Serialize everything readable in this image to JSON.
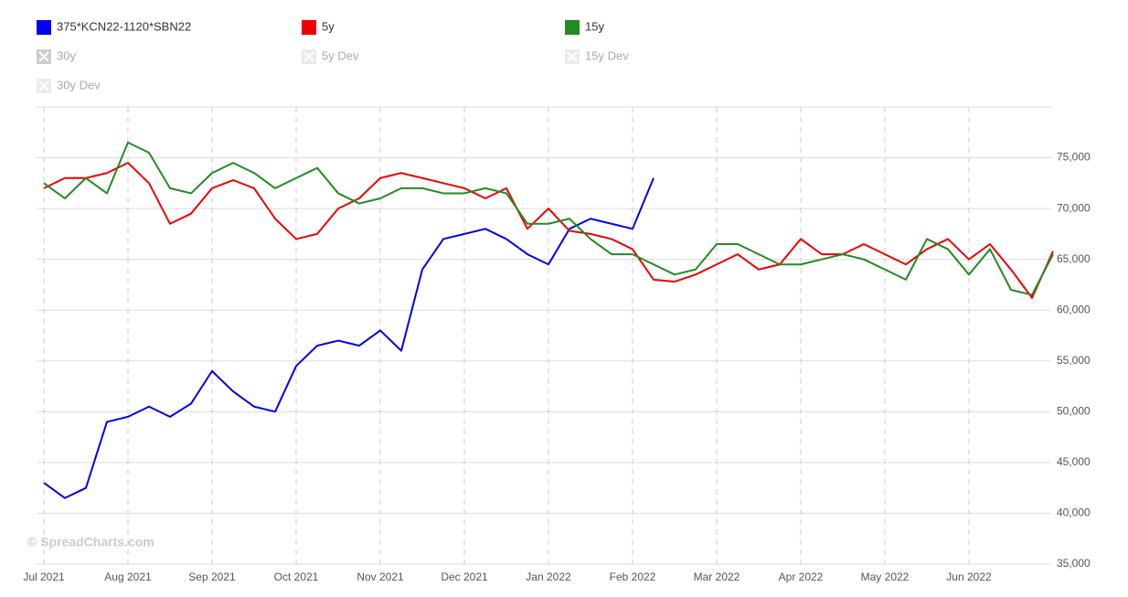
{
  "chart_data": {
    "type": "line",
    "watermark": "© SpreadCharts.com",
    "categories": [
      "Jul 2021",
      null,
      null,
      null,
      "Aug 2021",
      null,
      null,
      null,
      "Sep 2021",
      null,
      null,
      null,
      "Oct 2021",
      null,
      null,
      null,
      "Nov 2021",
      null,
      null,
      null,
      "Dec 2021",
      null,
      null,
      null,
      "Jan 2022",
      null,
      null,
      null,
      "Feb 2022",
      null,
      null,
      null,
      "Mar 2022",
      null,
      null,
      null,
      "Apr 2022",
      null,
      null,
      null,
      "May 2022",
      null,
      null,
      null,
      "Jun 2022",
      null,
      null,
      null,
      null
    ],
    "series": [
      {
        "name": "375*KCN22-1120*SBN22",
        "color": "#0000ee",
        "values": [
          43000,
          41500,
          42500,
          49000,
          49500,
          50500,
          49500,
          50800,
          54000,
          52000,
          50500,
          50000,
          54500,
          56500,
          57000,
          56500,
          58000,
          56000,
          64000,
          67000,
          67500,
          68000,
          67000,
          65500,
          64500,
          68000,
          69000,
          68500,
          68000,
          73000,
          null,
          null,
          null,
          null,
          null,
          null,
          null,
          null,
          null,
          null,
          null,
          null,
          null,
          null,
          null,
          null,
          null,
          null,
          null
        ]
      },
      {
        "name": "5y",
        "color": "#ee0000",
        "values": [
          72000,
          73000,
          73000,
          73500,
          74500,
          72500,
          68500,
          69500,
          72000,
          72800,
          72000,
          69000,
          67000,
          67500,
          70000,
          71000,
          73000,
          73500,
          73000,
          72500,
          72000,
          71000,
          72000,
          68000,
          70000,
          67800,
          67500,
          67000,
          66000,
          63000,
          62800,
          63500,
          64500,
          65500,
          64000,
          64500,
          67000,
          65500,
          65500,
          66500,
          65500,
          64500,
          66000,
          67000,
          65000,
          66500,
          64000,
          61200,
          65800
        ]
      },
      {
        "name": "15y",
        "color": "#228b22",
        "values": [
          72500,
          71000,
          73000,
          71500,
          76500,
          75500,
          72000,
          71500,
          73500,
          74500,
          73500,
          72000,
          73000,
          74000,
          71500,
          70500,
          71000,
          72000,
          72000,
          71500,
          71500,
          72000,
          71500,
          68500,
          68500,
          69000,
          67000,
          65500,
          65500,
          64500,
          63500,
          64000,
          66500,
          66500,
          65500,
          64500,
          64500,
          65000,
          65500,
          65000,
          64000,
          63000,
          67000,
          66000,
          63500,
          66000,
          62000,
          61500,
          65500
        ]
      }
    ],
    "hidden_series": [
      "30y",
      "5y Dev",
      "15y Dev",
      "30y Dev"
    ],
    "ylim": [
      35000,
      80000
    ],
    "yticks": [
      {
        "value": 35000,
        "label": "35,000"
      },
      {
        "value": 40000,
        "label": "40,000"
      },
      {
        "value": 45000,
        "label": "45,000"
      },
      {
        "value": 50000,
        "label": "50,000"
      },
      {
        "value": 55000,
        "label": "55,000"
      },
      {
        "value": 60000,
        "label": "60,000"
      },
      {
        "value": 65000,
        "label": "65,000"
      },
      {
        "value": 70000,
        "label": "70,000"
      },
      {
        "value": 75000,
        "label": "75,000"
      }
    ],
    "grid": true
  }
}
